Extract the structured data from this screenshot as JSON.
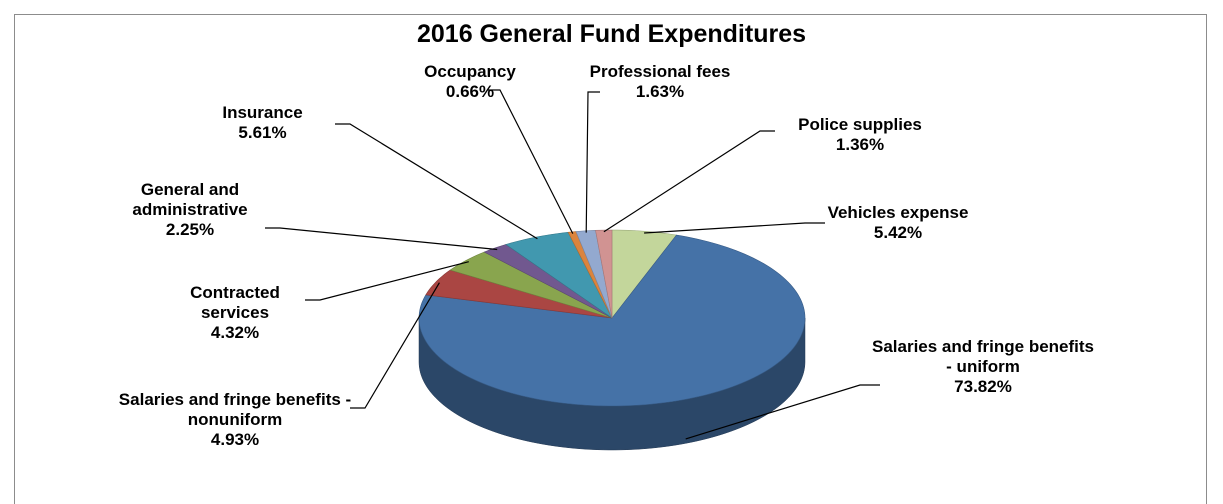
{
  "chart_data": {
    "type": "pie",
    "title": "2016 General Fund Expenditures",
    "categories": [
      "Vehicles expense",
      "Salaries and fringe benefits - uniform",
      "Salaries and fringe benefits - nonuniform",
      "Contracted services",
      "General and administrative",
      "Insurance",
      "Occupancy",
      "Professional fees",
      "Police supplies"
    ],
    "values": [
      5.42,
      73.82,
      4.93,
      4.32,
      2.25,
      5.61,
      0.66,
      1.63,
      1.36
    ],
    "value_labels": [
      "5.42%",
      "73.82%",
      "4.93%",
      "4.32%",
      "2.25%",
      "5.61%",
      "0.66%",
      "1.63%",
      "1.36%"
    ],
    "colors": [
      "#c3d69b",
      "#4572a7",
      "#aa4643",
      "#89a54e",
      "#71588f",
      "#4198af",
      "#db843d",
      "#93a9cf",
      "#d19392"
    ]
  }
}
